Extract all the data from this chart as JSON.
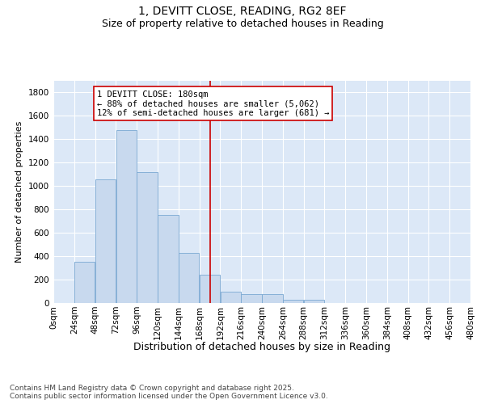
{
  "title": "1, DEVITT CLOSE, READING, RG2 8EF",
  "subtitle": "Size of property relative to detached houses in Reading",
  "xlabel": "Distribution of detached houses by size in Reading",
  "ylabel": "Number of detached properties",
  "bar_color": "#c8d9ee",
  "bar_edge_color": "#7aa8d2",
  "background_color": "#dce8f7",
  "grid_color": "#ffffff",
  "vline_x": 180,
  "vline_color": "#cc0000",
  "annotation_text": "1 DEVITT CLOSE: 180sqm\n← 88% of detached houses are smaller (5,062)\n12% of semi-detached houses are larger (681) →",
  "annotation_box_color": "#cc0000",
  "bin_edges": [
    0,
    24,
    48,
    72,
    96,
    120,
    144,
    168,
    192,
    216,
    240,
    264,
    288,
    312,
    336,
    360,
    384,
    408,
    432,
    456,
    480
  ],
  "bar_heights": [
    0,
    350,
    1060,
    1480,
    1120,
    750,
    430,
    240,
    100,
    75,
    75,
    30,
    30,
    0,
    0,
    0,
    0,
    0,
    0,
    0
  ],
  "ylim": [
    0,
    1900
  ],
  "yticks": [
    0,
    200,
    400,
    600,
    800,
    1000,
    1200,
    1400,
    1600,
    1800
  ],
  "figsize": [
    6.0,
    5.0
  ],
  "dpi": 100,
  "footer_text": "Contains HM Land Registry data © Crown copyright and database right 2025.\nContains public sector information licensed under the Open Government Licence v3.0.",
  "title_fontsize": 10,
  "subtitle_fontsize": 9,
  "xlabel_fontsize": 9,
  "ylabel_fontsize": 8,
  "tick_fontsize": 7.5,
  "annotation_fontsize": 7.5,
  "footer_fontsize": 6.5
}
